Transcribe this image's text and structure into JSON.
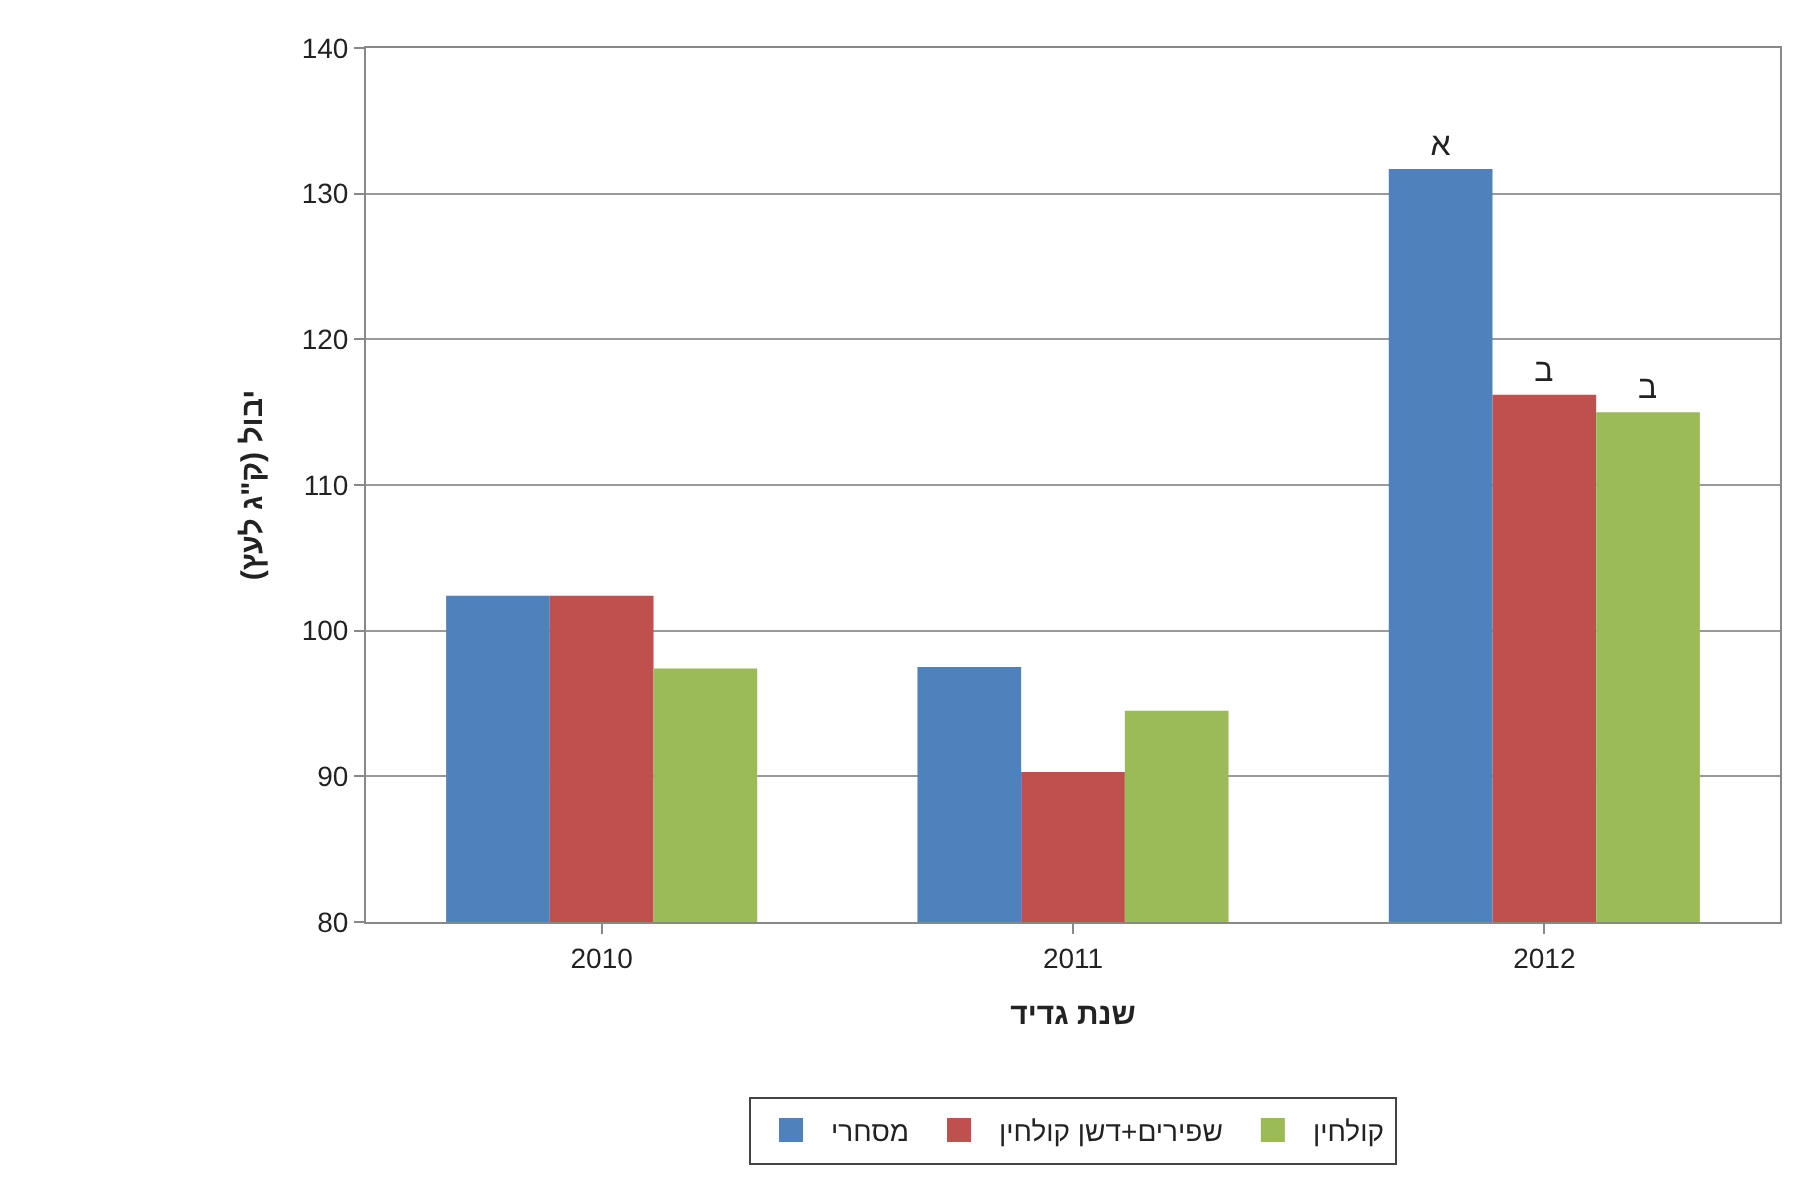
{
  "chart_data": {
    "type": "bar",
    "xlabel": "שנת גדיד",
    "ylabel": "יבול (ק\"ג לעץ)",
    "categories": [
      "2010",
      "2011",
      "2012"
    ],
    "series": [
      {
        "name": "מסחרי",
        "color": "#4f81bd",
        "values": [
          102.4,
          97.5,
          131.7
        ],
        "value_labels": [
          null,
          null,
          "א"
        ]
      },
      {
        "name": "שפירים+דשן קולחין",
        "color": "#c0504d",
        "values": [
          102.4,
          90.3,
          116.2
        ],
        "value_labels": [
          null,
          null,
          "ב"
        ]
      },
      {
        "name": "קולחין",
        "color": "#9bbb59",
        "values": [
          97.4,
          94.5,
          115.0
        ],
        "value_labels": [
          null,
          null,
          "ב"
        ]
      }
    ],
    "ylim": [
      80,
      140
    ],
    "yticks": [
      80,
      90,
      100,
      110,
      120,
      130,
      140
    ],
    "grid": "y",
    "legend": "bottom"
  }
}
